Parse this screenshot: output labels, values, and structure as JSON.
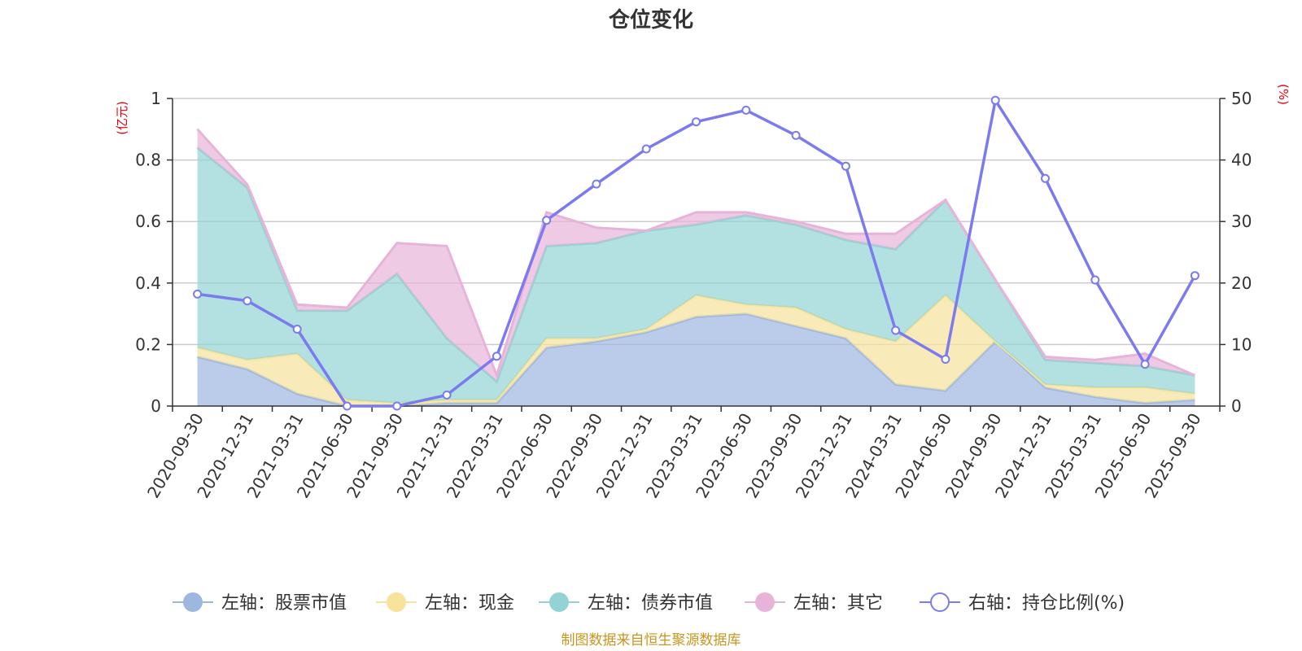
{
  "chart_data": {
    "type": "area",
    "title": "仓位变化",
    "left_unit": "(亿元)",
    "right_unit": "(%)",
    "categories": [
      "2020-09-30",
      "2020-12-31",
      "2021-03-31",
      "2021-06-30",
      "2021-09-30",
      "2021-12-31",
      "2022-03-31",
      "2022-06-30",
      "2022-09-30",
      "2022-12-31",
      "2023-03-31",
      "2023-06-30",
      "2023-09-30",
      "2023-12-31",
      "2024-03-31",
      "2024-06-30",
      "2024-09-30",
      "2024-12-31",
      "2025-03-31",
      "2025-06-30",
      "2025-09-30"
    ],
    "left_axis": {
      "min": 0,
      "max": 1,
      "ticks": [
        "0",
        "0.2",
        "0.4",
        "0.6",
        "0.8",
        "1"
      ],
      "tick_values": [
        0,
        0.2,
        0.4,
        0.6,
        0.8,
        1
      ]
    },
    "right_axis": {
      "min": 0,
      "max": 50,
      "ticks": [
        "0",
        "10",
        "20",
        "30",
        "40",
        "50"
      ],
      "tick_values": [
        0,
        10,
        20,
        30,
        40,
        50
      ]
    },
    "stacked": true,
    "series": [
      {
        "name": "左轴：股票市值",
        "axis": "left",
        "color": "#9db7e0",
        "values": [
          0.16,
          0.12,
          0.04,
          0.0,
          0.0,
          0.01,
          0.01,
          0.19,
          0.21,
          0.24,
          0.29,
          0.3,
          0.26,
          0.22,
          0.07,
          0.05,
          0.21,
          0.06,
          0.03,
          0.01,
          0.02
        ]
      },
      {
        "name": "左轴：现金",
        "axis": "left",
        "color": "#f7e39b",
        "values": [
          0.03,
          0.03,
          0.13,
          0.02,
          0.01,
          0.01,
          0.01,
          0.03,
          0.01,
          0.01,
          0.07,
          0.03,
          0.06,
          0.03,
          0.14,
          0.31,
          0.0,
          0.01,
          0.03,
          0.05,
          0.02
        ]
      },
      {
        "name": "左轴：债券市值",
        "axis": "left",
        "color": "#93d3d3",
        "values": [
          0.65,
          0.56,
          0.14,
          0.29,
          0.42,
          0.2,
          0.06,
          0.3,
          0.31,
          0.32,
          0.23,
          0.29,
          0.27,
          0.29,
          0.3,
          0.31,
          0.2,
          0.08,
          0.08,
          0.07,
          0.06
        ]
      },
      {
        "name": "左轴：其它",
        "axis": "left",
        "color": "#e8b3d8",
        "values": [
          0.06,
          0.01,
          0.02,
          0.01,
          0.1,
          0.3,
          0.02,
          0.11,
          0.05,
          0.0,
          0.04,
          0.01,
          0.01,
          0.02,
          0.05,
          0.0,
          0.0,
          0.01,
          0.01,
          0.04,
          0.0
        ]
      },
      {
        "name": "右轴：持仓比例(%)",
        "axis": "right",
        "color": "#7b7bef",
        "type": "line",
        "values": [
          18.2,
          17.1,
          12.5,
          0.0,
          0.0,
          1.8,
          8.1,
          30.2,
          36.1,
          41.8,
          46.2,
          48.1,
          44.0,
          39.0,
          12.3,
          7.6,
          49.7,
          37.0,
          20.5,
          6.8,
          21.2
        ]
      }
    ],
    "legend_position": "bottom",
    "grid": true,
    "source": "制图数据来自恒生聚源数据库"
  }
}
